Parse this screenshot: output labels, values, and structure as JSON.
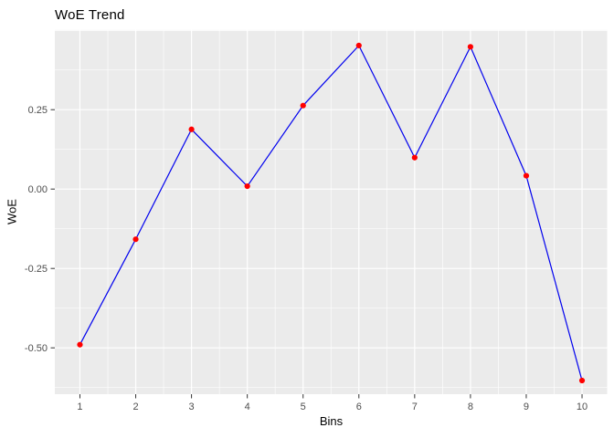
{
  "chart_data": {
    "type": "line",
    "title": "WoE Trend",
    "xlabel": "Bins",
    "ylabel": "WoE",
    "x": [
      1,
      2,
      3,
      4,
      5,
      6,
      7,
      8,
      9,
      10
    ],
    "values": [
      -0.49,
      -0.158,
      0.188,
      0.009,
      0.263,
      0.452,
      0.099,
      0.448,
      0.042,
      -0.603
    ],
    "x_tick_labels": [
      "1",
      "2",
      "3",
      "4",
      "5",
      "6",
      "7",
      "8",
      "9",
      "10"
    ],
    "y_ticks": [
      0.25,
      0.0,
      -0.25,
      -0.5
    ],
    "y_tick_labels": [
      "0.25",
      "0.00",
      "-0.25",
      "-0.50"
    ],
    "y_grid_major": [
      0.5,
      0.25,
      0.0,
      -0.25,
      -0.5
    ],
    "y_grid_minor": [
      0.375,
      0.125,
      -0.125,
      -0.375,
      -0.625
    ],
    "x_grid_minor": [
      1.5,
      2.5,
      3.5,
      4.5,
      5.5,
      6.5,
      7.5,
      8.5,
      9.5
    ],
    "xlim": [
      0.55,
      10.45
    ],
    "ylim": [
      -0.646,
      0.502
    ],
    "grid": true,
    "legend_position": "none",
    "colors": {
      "line": "#0000EE",
      "point": "#FF0000",
      "panel_bg": "#EBEBEB",
      "grid_major": "#FFFFFF",
      "grid_minor": "#FFFFFF",
      "tick_mark": "#333333",
      "tick_text": "#4D4D4D",
      "title_text": "#000000"
    }
  }
}
